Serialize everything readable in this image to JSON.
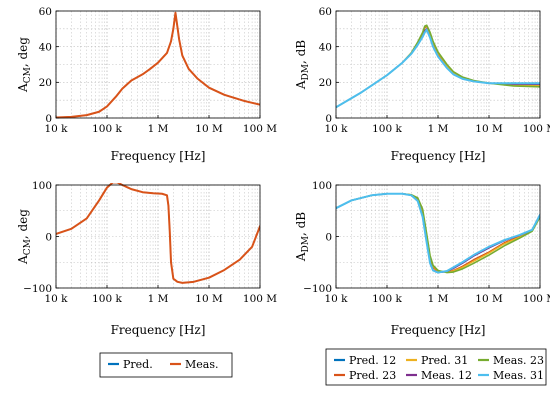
{
  "chart_data": [
    {
      "id": "cm_mag",
      "type": "line",
      "xscale": "log",
      "xlabel": "Frequency [Hz]",
      "ylabel": {
        "main": "A",
        "sub": "CM",
        "tail": ", deg"
      },
      "xlim": [
        10000,
        100000000
      ],
      "ylim": [
        0,
        60
      ],
      "xticks": [
        {
          "v": 10000,
          "label": "10 k"
        },
        {
          "v": 100000,
          "label": "100 k"
        },
        {
          "v": 1000000,
          "label": "1 M"
        },
        {
          "v": 10000000,
          "label": "10 M"
        },
        {
          "v": 100000000,
          "label": "100 M"
        }
      ],
      "yticks": [
        {
          "v": 0,
          "label": "0"
        },
        {
          "v": 20,
          "label": "20"
        },
        {
          "v": 40,
          "label": "40"
        },
        {
          "v": 60,
          "label": "60"
        }
      ],
      "grid": true,
      "series": [
        {
          "name": "Pred.",
          "color": "#0072BD",
          "width": 1.4,
          "x": [
            10000,
            20000,
            40000,
            70000,
            100000,
            150000,
            200000,
            300000,
            500000,
            700000,
            1000000,
            1500000,
            1800000,
            2000000,
            2200000,
            2600000,
            3000000,
            4000000,
            6000000,
            10000000,
            20000000,
            50000000,
            100000000
          ],
          "y": [
            0.3,
            0.6,
            1.6,
            3.5,
            6.5,
            12,
            16.5,
            21,
            24.5,
            27.5,
            31,
            36.5,
            43,
            50,
            59,
            44,
            35,
            27.5,
            22,
            17,
            13,
            9.5,
            7.5
          ]
        },
        {
          "name": "Meas.",
          "color": "#D95319",
          "width": 2,
          "x": [
            10000,
            20000,
            40000,
            70000,
            100000,
            150000,
            200000,
            300000,
            500000,
            700000,
            1000000,
            1500000,
            1800000,
            2000000,
            2200000,
            2600000,
            3000000,
            4000000,
            6000000,
            10000000,
            20000000,
            50000000,
            100000000
          ],
          "y": [
            0.3,
            0.6,
            1.6,
            3.5,
            6.5,
            12,
            16.5,
            21,
            24.5,
            27.5,
            31,
            36.5,
            43,
            50,
            59,
            44,
            35,
            27.5,
            22,
            17,
            13,
            9.5,
            7.5
          ]
        }
      ]
    },
    {
      "id": "dm_mag",
      "type": "line",
      "xscale": "log",
      "xlabel": "Frequency [Hz]",
      "ylabel": {
        "main": "A",
        "sub": "DM",
        "tail": ", dB"
      },
      "xlim": [
        10000,
        100000000
      ],
      "ylim": [
        0,
        60
      ],
      "xticks": [
        {
          "v": 10000,
          "label": "10 k"
        },
        {
          "v": 100000,
          "label": "100 k"
        },
        {
          "v": 1000000,
          "label": "1 M"
        },
        {
          "v": 10000000,
          "label": "10 M"
        },
        {
          "v": 100000000,
          "label": "100 M"
        }
      ],
      "yticks": [
        {
          "v": 0,
          "label": "0"
        },
        {
          "v": 20,
          "label": "20"
        },
        {
          "v": 40,
          "label": "40"
        },
        {
          "v": 60,
          "label": "60"
        }
      ],
      "grid": true,
      "series": [
        {
          "name": "Pred. 12",
          "color": "#0072BD",
          "width": 1.4,
          "x": [
            10000,
            30000,
            100000,
            200000,
            300000,
            400000,
            500000,
            550000,
            600000,
            700000,
            800000,
            1000000,
            1500000,
            2000000,
            3000000,
            5000000,
            10000000,
            30000000,
            100000000
          ],
          "y": [
            6,
            14,
            24,
            31,
            36,
            41,
            46,
            49,
            50,
            45,
            40,
            34.5,
            28,
            24.5,
            22,
            20.5,
            19.5,
            19,
            19
          ]
        },
        {
          "name": "Pred. 23",
          "color": "#D95319",
          "width": 1.4,
          "x": [
            10000,
            30000,
            100000,
            200000,
            300000,
            400000,
            500000,
            550000,
            600000,
            700000,
            800000,
            1000000,
            1500000,
            2000000,
            3000000,
            5000000,
            10000000,
            30000000,
            100000000
          ],
          "y": [
            6,
            14,
            24,
            31,
            36.5,
            42,
            47.5,
            50.5,
            51.5,
            47,
            42,
            36,
            29.5,
            25.5,
            22.5,
            20.5,
            19.5,
            18.5,
            18
          ]
        },
        {
          "name": "Pred. 31",
          "color": "#EDB120",
          "width": 1.4,
          "x": [
            10000,
            30000,
            100000,
            200000,
            300000,
            400000,
            500000,
            550000,
            600000,
            700000,
            800000,
            1000000,
            1500000,
            2000000,
            3000000,
            5000000,
            10000000,
            30000000,
            100000000
          ],
          "y": [
            6,
            14,
            24,
            31,
            36.5,
            42,
            47.5,
            51,
            52,
            47.5,
            42.5,
            36.5,
            29.5,
            25.5,
            22.5,
            20.5,
            19.5,
            18.5,
            18
          ]
        },
        {
          "name": "Meas. 12",
          "color": "#7E2F8E",
          "width": 1.4,
          "x": [
            10000,
            30000,
            100000,
            200000,
            300000,
            400000,
            500000,
            550000,
            600000,
            700000,
            800000,
            1000000,
            1500000,
            2000000,
            3000000,
            5000000,
            10000000,
            30000000,
            100000000
          ],
          "y": [
            6,
            14,
            24,
            31,
            36,
            41,
            46,
            49,
            50,
            45,
            40,
            34.5,
            28,
            24.5,
            22,
            20.5,
            19.5,
            19,
            19
          ]
        },
        {
          "name": "Meas. 23",
          "color": "#77AC30",
          "width": 1.6,
          "x": [
            10000,
            30000,
            100000,
            200000,
            300000,
            400000,
            500000,
            550000,
            600000,
            700000,
            800000,
            1000000,
            1500000,
            2000000,
            3000000,
            5000000,
            10000000,
            30000000,
            100000000
          ],
          "y": [
            6,
            14,
            24,
            31,
            36.5,
            42.5,
            48,
            51.5,
            52,
            48,
            43,
            37,
            30,
            26,
            23,
            21,
            19.5,
            18,
            17.5
          ]
        },
        {
          "name": "Meas. 31",
          "color": "#4DBEEE",
          "width": 2,
          "x": [
            10000,
            30000,
            100000,
            200000,
            300000,
            400000,
            500000,
            550000,
            600000,
            700000,
            800000,
            1000000,
            1500000,
            2000000,
            3000000,
            5000000,
            10000000,
            30000000,
            100000000
          ],
          "y": [
            6,
            14,
            24,
            31,
            36,
            41,
            45.5,
            48,
            49.5,
            45,
            40,
            34.5,
            28,
            24.5,
            22,
            20.5,
            19.5,
            19.5,
            19.5
          ]
        }
      ]
    },
    {
      "id": "cm_phase",
      "type": "line",
      "xscale": "log",
      "xlabel": "Frequency [Hz]",
      "ylabel": {
        "main": "A",
        "sub": "CM",
        "tail": ", deg"
      },
      "xlim": [
        10000,
        100000000
      ],
      "ylim": [
        -100,
        100
      ],
      "xticks": [
        {
          "v": 10000,
          "label": "10 k"
        },
        {
          "v": 100000,
          "label": "100 k"
        },
        {
          "v": 1000000,
          "label": "1 M"
        },
        {
          "v": 10000000,
          "label": "10 M"
        },
        {
          "v": 100000000,
          "label": "100 M"
        }
      ],
      "yticks": [
        {
          "v": -100,
          "label": "−100"
        },
        {
          "v": 0,
          "label": "0"
        },
        {
          "v": 100,
          "label": "100"
        }
      ],
      "grid": true,
      "series": [
        {
          "name": "Pred.",
          "color": "#0072BD",
          "width": 1.4,
          "x": [
            10000,
            20000,
            40000,
            70000,
            100000,
            130000,
            160000,
            200000,
            300000,
            500000,
            800000,
            1200000,
            1500000,
            1600000,
            1700000,
            1800000,
            2000000,
            2400000,
            3000000,
            5000000,
            10000000,
            20000000,
            40000000,
            70000000,
            100000000
          ],
          "y": [
            5,
            15,
            35,
            70,
            95,
            105,
            105,
            100,
            92,
            86,
            84,
            83,
            80,
            60,
            10,
            -50,
            -82,
            -88,
            -90,
            -88,
            -80,
            -65,
            -45,
            -20,
            20
          ]
        },
        {
          "name": "Meas.",
          "color": "#D95319",
          "width": 2,
          "x": [
            10000,
            20000,
            40000,
            70000,
            100000,
            130000,
            160000,
            200000,
            300000,
            500000,
            800000,
            1200000,
            1500000,
            1600000,
            1700000,
            1800000,
            2000000,
            2400000,
            3000000,
            5000000,
            10000000,
            20000000,
            40000000,
            70000000,
            100000000
          ],
          "y": [
            5,
            15,
            35,
            70,
            95,
            105,
            105,
            100,
            92,
            86,
            84,
            83,
            80,
            60,
            10,
            -50,
            -82,
            -88,
            -90,
            -88,
            -80,
            -65,
            -45,
            -20,
            20
          ]
        }
      ]
    },
    {
      "id": "dm_phase",
      "type": "line",
      "xscale": "log",
      "xlabel": "Frequency [Hz]",
      "ylabel": {
        "main": "A",
        "sub": "DM",
        "tail": ", dB"
      },
      "xlim": [
        10000,
        100000000
      ],
      "ylim": [
        -100,
        100
      ],
      "xticks": [
        {
          "v": 10000,
          "label": "10 k"
        },
        {
          "v": 100000,
          "label": "100 k"
        },
        {
          "v": 1000000,
          "label": "1 M"
        },
        {
          "v": 10000000,
          "label": "10 M"
        },
        {
          "v": 100000000,
          "label": "100 M"
        }
      ],
      "yticks": [
        {
          "v": -100,
          "label": "−100"
        },
        {
          "v": 0,
          "label": "0"
        },
        {
          "v": 100,
          "label": "100"
        }
      ],
      "grid": true,
      "series": [
        {
          "name": "Pred. 12",
          "color": "#0072BD",
          "width": 1.4,
          "x": [
            10000,
            20000,
            50000,
            100000,
            200000,
            300000,
            400000,
            500000,
            600000,
            700000,
            800000,
            1000000,
            1500000,
            2000000,
            3000000,
            5000000,
            10000000,
            20000000,
            40000000,
            70000000,
            100000000
          ],
          "y": [
            55,
            70,
            80,
            83,
            83,
            80,
            70,
            40,
            -10,
            -50,
            -65,
            -70,
            -68,
            -62,
            -52,
            -38,
            -22,
            -8,
            2,
            12,
            42
          ]
        },
        {
          "name": "Pred. 23",
          "color": "#D95319",
          "width": 1.4,
          "x": [
            10000,
            20000,
            50000,
            100000,
            200000,
            300000,
            400000,
            500000,
            600000,
            700000,
            800000,
            1000000,
            1500000,
            2000000,
            3000000,
            5000000,
            10000000,
            20000000,
            40000000,
            70000000,
            100000000
          ],
          "y": [
            55,
            70,
            80,
            83,
            83,
            81,
            73,
            47,
            -2,
            -42,
            -60,
            -68,
            -69,
            -66,
            -58,
            -45,
            -30,
            -12,
            0,
            12,
            40
          ]
        },
        {
          "name": "Pred. 31",
          "color": "#EDB120",
          "width": 1.4,
          "x": [
            10000,
            20000,
            50000,
            100000,
            200000,
            300000,
            400000,
            500000,
            600000,
            700000,
            800000,
            1000000,
            1500000,
            2000000,
            3000000,
            5000000,
            10000000,
            20000000,
            40000000,
            70000000,
            100000000
          ],
          "y": [
            55,
            70,
            80,
            83,
            83,
            81,
            74,
            50,
            2,
            -40,
            -58,
            -67,
            -69,
            -67,
            -60,
            -48,
            -32,
            -14,
            -1,
            12,
            40
          ]
        },
        {
          "name": "Meas. 12",
          "color": "#7E2F8E",
          "width": 1.4,
          "x": [
            10000,
            20000,
            50000,
            100000,
            200000,
            300000,
            400000,
            500000,
            600000,
            700000,
            800000,
            1000000,
            1500000,
            2000000,
            3000000,
            5000000,
            10000000,
            20000000,
            40000000,
            70000000,
            100000000
          ],
          "y": [
            55,
            70,
            80,
            83,
            83,
            80,
            70,
            40,
            -10,
            -50,
            -65,
            -70,
            -68,
            -62,
            -52,
            -38,
            -22,
            -8,
            2,
            12,
            42
          ]
        },
        {
          "name": "Meas. 23",
          "color": "#77AC30",
          "width": 1.6,
          "x": [
            10000,
            20000,
            50000,
            100000,
            200000,
            300000,
            400000,
            500000,
            600000,
            700000,
            800000,
            1000000,
            1500000,
            2000000,
            3000000,
            5000000,
            10000000,
            20000000,
            40000000,
            70000000,
            100000000
          ],
          "y": [
            55,
            70,
            80,
            83,
            83,
            81,
            75,
            53,
            5,
            -37,
            -56,
            -66,
            -70,
            -69,
            -63,
            -52,
            -36,
            -18,
            -3,
            10,
            38
          ]
        },
        {
          "name": "Meas. 31",
          "color": "#4DBEEE",
          "width": 2,
          "x": [
            10000,
            20000,
            50000,
            100000,
            200000,
            300000,
            400000,
            500000,
            600000,
            700000,
            800000,
            1000000,
            1500000,
            2000000,
            3000000,
            5000000,
            10000000,
            20000000,
            40000000,
            70000000,
            100000000
          ],
          "y": [
            55,
            70,
            80,
            83,
            83,
            80,
            69,
            38,
            -12,
            -52,
            -66,
            -70,
            -67,
            -60,
            -50,
            -36,
            -20,
            -7,
            3,
            13,
            42
          ]
        }
      ]
    }
  ],
  "legends": {
    "left": [
      {
        "name": "Pred.",
        "color": "#0072BD"
      },
      {
        "name": "Meas.",
        "color": "#D95319"
      }
    ],
    "right": [
      {
        "name": "Pred. 12",
        "color": "#0072BD"
      },
      {
        "name": "Pred. 31",
        "color": "#EDB120"
      },
      {
        "name": "Meas. 23",
        "color": "#77AC30"
      },
      {
        "name": "Pred. 23",
        "color": "#D95319"
      },
      {
        "name": "Meas. 12",
        "color": "#7E2F8E"
      },
      {
        "name": "Meas. 31",
        "color": "#4DBEEE"
      }
    ]
  }
}
